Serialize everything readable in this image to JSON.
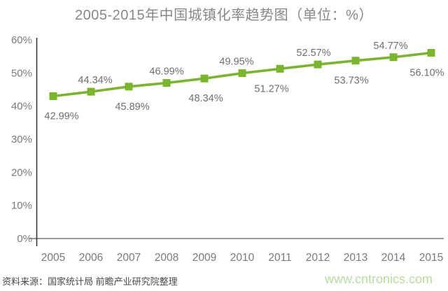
{
  "chart_data": {
    "type": "line",
    "title": "2005-2015年中国城镇化率趋势图（单位：%）",
    "x": [
      "2005",
      "2006",
      "2007",
      "2008",
      "2009",
      "2010",
      "2011",
      "2012",
      "2013",
      "2014",
      "2015"
    ],
    "values": [
      42.99,
      44.34,
      45.89,
      46.99,
      48.34,
      49.95,
      51.27,
      52.57,
      53.73,
      54.77,
      56.1
    ],
    "data_labels": [
      "42.99%",
      "44.34%",
      "45.89%",
      "46.99%",
      "48.34%",
      "49.95%",
      "51.27%",
      "52.57%",
      "53.73%",
      "54.77%",
      "56.10%"
    ],
    "label_positions": [
      "below",
      "above",
      "below",
      "above",
      "below",
      "above",
      "below",
      "above",
      "below",
      "above",
      "below"
    ],
    "label_dx": [
      12,
      6,
      5,
      0,
      2,
      -8,
      -12,
      -6,
      -6,
      -4,
      -6
    ],
    "ylim": [
      0,
      60
    ],
    "ytick_step": 10,
    "ytick_labels": [
      "0%",
      "10%",
      "20%",
      "30%",
      "40%",
      "50%",
      "60%"
    ],
    "grid": false,
    "legend": "none",
    "marker": "square",
    "colors": {
      "line": "#7ab62c",
      "marker": "#7ab62c",
      "axis_y": "#3c3436",
      "axis_x": "#9a9595",
      "tick_text": "#7a7a7a",
      "data_label_text": "#6f6f6f",
      "title_text": "#878787"
    }
  },
  "footer": {
    "source": "资料来源：国家统计局 前瞻产业研究院整理",
    "watermark": "www.cntronics.com",
    "watermark_color": "#b9dd9e"
  }
}
